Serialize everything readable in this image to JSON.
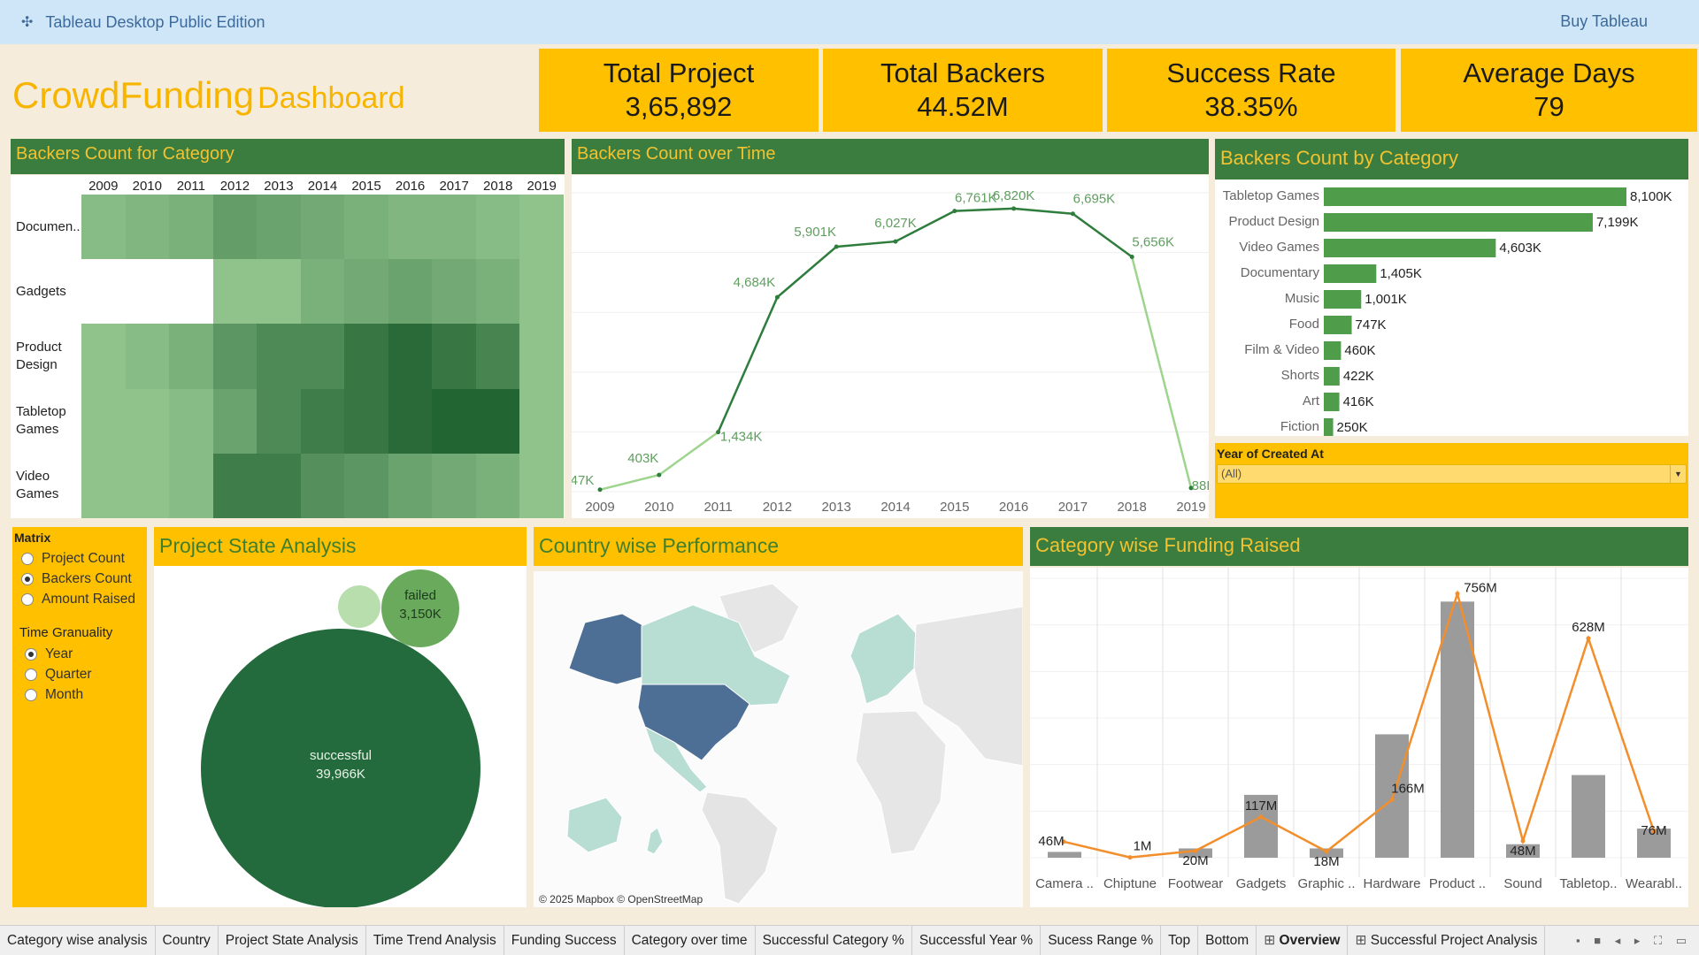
{
  "topbar": {
    "app_title": "Tableau Desktop Public Edition",
    "buy_label": "Buy Tableau",
    "logo_icon": "tableau-logo-icon"
  },
  "dashboard": {
    "title": "CrowdFunding",
    "subtitle": "Dashboard"
  },
  "kpis": [
    {
      "label": "Total Project",
      "value": "3,65,892"
    },
    {
      "label": "Total Backers",
      "value": "44.52M"
    },
    {
      "label": "Success Rate",
      "value": "38.35%"
    },
    {
      "label": "Average Days",
      "value": "79"
    }
  ],
  "heatmap": {
    "title": "Backers Count for Category",
    "years": [
      "2009",
      "2010",
      "2011",
      "2012",
      "2013",
      "2014",
      "2015",
      "2016",
      "2017",
      "2018",
      "2019"
    ],
    "rows": [
      "Documen..",
      "Gadgets",
      "Product Design",
      "Tabletop Games",
      "Video Games"
    ],
    "intensity": [
      [
        0.3,
        0.35,
        0.4,
        0.55,
        0.5,
        0.45,
        0.4,
        0.35,
        0.35,
        0.3,
        0.25
      ],
      [
        null,
        null,
        null,
        0.25,
        0.25,
        0.4,
        0.45,
        0.5,
        0.45,
        0.4,
        0.25
      ],
      [
        0.25,
        0.3,
        0.4,
        0.6,
        0.7,
        0.7,
        0.85,
        0.95,
        0.85,
        0.75,
        0.25
      ],
      [
        0.25,
        0.25,
        0.3,
        0.5,
        0.7,
        0.8,
        0.85,
        0.95,
        1.0,
        1.0,
        0.25
      ],
      [
        0.25,
        0.25,
        0.3,
        0.8,
        0.8,
        0.65,
        0.6,
        0.5,
        0.45,
        0.4,
        0.25
      ]
    ]
  },
  "line_chart": {
    "title": "Backers Count over Time",
    "chart_data": {
      "type": "line",
      "x": [
        "2009",
        "2010",
        "2011",
        "2012",
        "2013",
        "2014",
        "2015",
        "2016",
        "2017",
        "2018",
        "2019"
      ],
      "values": [
        47,
        403,
        1434,
        4684,
        5901,
        6027,
        6761,
        6820,
        6695,
        5656,
        88
      ],
      "labels": [
        "47K",
        "403K",
        "1,434K",
        "4,684K",
        "5,901K",
        "6,027K",
        "6,761K",
        "6,820K",
        "6,695K",
        "5,656K",
        "88K"
      ],
      "ylim": [
        0,
        7200
      ]
    }
  },
  "bar_chart": {
    "title": "Backers Count by Category",
    "chart_data": {
      "type": "bar",
      "categories": [
        "Tabletop Games",
        "Product Design",
        "Video Games",
        "Documentary",
        "Music",
        "Food",
        "Film & Video",
        "Shorts",
        "Art",
        "Fiction"
      ],
      "values": [
        8100,
        7199,
        4603,
        1405,
        1001,
        747,
        460,
        422,
        416,
        250
      ],
      "labels": [
        "8,100K",
        "7,199K",
        "4,603K",
        "1,405K",
        "1,001K",
        "747K",
        "460K",
        "422K",
        "416K",
        "250K"
      ]
    }
  },
  "filter": {
    "label": "Year of Created At",
    "value": "(All)"
  },
  "matrix": {
    "title": "Matrix",
    "options": [
      {
        "label": "Project Count",
        "selected": false
      },
      {
        "label": "Backers Count",
        "selected": true
      },
      {
        "label": "Amount Raised",
        "selected": false
      }
    ],
    "granularity_title": "Time Granuality",
    "granularity_options": [
      {
        "label": "Year",
        "selected": true
      },
      {
        "label": "Quarter",
        "selected": false
      },
      {
        "label": "Month",
        "selected": false
      }
    ]
  },
  "project_state": {
    "title": "Project State Analysis",
    "chart_data": {
      "type": "bubble",
      "items": [
        {
          "state": "successful",
          "value": 39966,
          "label": "39,966K",
          "color": "#236b3c"
        },
        {
          "state": "failed",
          "value": 3150,
          "label": "3,150K",
          "color": "#6aaa5c"
        },
        {
          "state": "",
          "value": 900,
          "label": "",
          "color": "#b7deac"
        }
      ]
    }
  },
  "country": {
    "title": "Country wise Performance",
    "attribution": "© 2025 Mapbox © OpenStreetMap"
  },
  "funding": {
    "title": "Category wise Funding Raised",
    "chart_data": {
      "type": "bar",
      "categories": [
        "Camera ..",
        "Chiptune",
        "Footwear",
        "Gadgets",
        "Graphic ..",
        "Hardware",
        "Product ..",
        "Sound",
        "Tabletop..",
        "Wearabl.."
      ],
      "bar_values": [
        25,
        0,
        40,
        270,
        40,
        530,
        1100,
        58,
        355,
        125
      ],
      "line_values": [
        46,
        1,
        20,
        117,
        18,
        166,
        756,
        48,
        628,
        76
      ],
      "line_labels": [
        "46M",
        "1M",
        "20M",
        "117M",
        "18M",
        "166M",
        "756M",
        "48M",
        "628M",
        "76M"
      ],
      "line_color": "#f28e2b",
      "bar_color": "#9b9b9b"
    }
  },
  "tabs": [
    {
      "label": "Category wise analysis",
      "active": false,
      "icon": ""
    },
    {
      "label": "Country",
      "active": false,
      "icon": ""
    },
    {
      "label": "Project State Analysis",
      "active": false,
      "icon": ""
    },
    {
      "label": "Time Trend Analysis",
      "active": false,
      "icon": ""
    },
    {
      "label": "Funding Success",
      "active": false,
      "icon": ""
    },
    {
      "label": "Category over time",
      "active": false,
      "icon": ""
    },
    {
      "label": "Successful Category %",
      "active": false,
      "icon": ""
    },
    {
      "label": "Successful Year %",
      "active": false,
      "icon": ""
    },
    {
      "label": "Sucess Range %",
      "active": false,
      "icon": ""
    },
    {
      "label": "Top",
      "active": false,
      "icon": ""
    },
    {
      "label": "Bottom",
      "active": false,
      "icon": ""
    },
    {
      "label": "Overview",
      "active": true,
      "icon": "dashboard-grid-icon"
    },
    {
      "label": "Successful Project Analysis",
      "active": false,
      "icon": "dashboard-grid-icon"
    }
  ]
}
